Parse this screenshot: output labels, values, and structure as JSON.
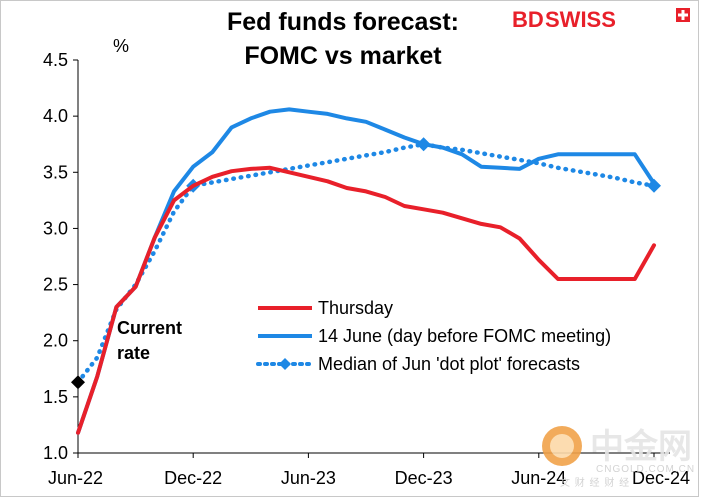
{
  "branding": {
    "logo_bd": "BD",
    "logo_swiss": "SWISS",
    "watermark_cn": "中金网",
    "watermark_site": "CNGOLD.COM.CN",
    "watermark_sub": "文  财  经  财  经"
  },
  "chart_data": {
    "type": "line",
    "title": [
      "Fed funds forecast:",
      "FOMC vs market"
    ],
    "ylabel": "%",
    "ylim": [
      1.0,
      4.5
    ],
    "yticks": [
      "1.0",
      "1.5",
      "2.0",
      "2.5",
      "3.0",
      "3.5",
      "4.0",
      "4.5"
    ],
    "xlim": [
      0,
      30
    ],
    "xticks": [
      {
        "pos": 0,
        "label": "Jun-22"
      },
      {
        "pos": 6,
        "label": "Dec-22"
      },
      {
        "pos": 12,
        "label": "Jun-23"
      },
      {
        "pos": 18,
        "label": "Dec-23"
      },
      {
        "pos": 24,
        "label": "Jun-24"
      },
      {
        "pos": 30,
        "label": "Dec-24"
      }
    ],
    "series": [
      {
        "name": "Thursday",
        "style": "solid",
        "color": "#e8202a",
        "x": [
          0,
          1,
          2,
          3,
          4,
          5,
          6,
          7,
          8,
          9,
          10,
          11,
          12,
          13,
          14,
          15,
          16,
          17,
          18,
          19,
          20,
          21,
          22,
          23,
          24,
          25,
          26,
          27,
          28,
          29,
          30
        ],
        "y": [
          1.18,
          1.68,
          2.3,
          2.48,
          2.92,
          3.25,
          3.38,
          3.46,
          3.51,
          3.53,
          3.54,
          3.5,
          3.46,
          3.42,
          3.36,
          3.33,
          3.28,
          3.2,
          3.17,
          3.14,
          3.09,
          3.04,
          3.01,
          2.91,
          2.72,
          2.55,
          2.55,
          2.55,
          2.55,
          2.55,
          2.85
        ]
      },
      {
        "name": "14 June (day before FOMC meeting)",
        "style": "solid",
        "color": "#1e88e5",
        "x": [
          0,
          1,
          2,
          3,
          4,
          5,
          6,
          7,
          8,
          9,
          10,
          11,
          12,
          13,
          14,
          15,
          16,
          17,
          18,
          19,
          20,
          21,
          22,
          23,
          24,
          25,
          26,
          27,
          28,
          29,
          30
        ],
        "y": [
          1.18,
          1.68,
          2.3,
          2.48,
          2.92,
          3.33,
          3.55,
          3.68,
          3.9,
          3.98,
          4.04,
          4.06,
          4.04,
          4.02,
          3.98,
          3.95,
          3.88,
          3.81,
          3.75,
          3.72,
          3.66,
          3.55,
          3.54,
          3.53,
          3.62,
          3.66,
          3.66,
          3.66,
          3.66,
          3.66,
          3.4
        ]
      },
      {
        "name": "Median of Jun 'dot plot' forecasts",
        "style": "dotted",
        "color": "#1e88e5",
        "markers": "diamond",
        "marker_x": [
          6,
          18,
          30
        ],
        "x": [
          0,
          1,
          2,
          3,
          4,
          5,
          6,
          7,
          8,
          9,
          10,
          11,
          12,
          13,
          14,
          15,
          16,
          17,
          18,
          19,
          20,
          21,
          22,
          23,
          24,
          25,
          26,
          27,
          28,
          29,
          30
        ],
        "y": [
          1.63,
          1.85,
          2.28,
          2.5,
          2.8,
          3.15,
          3.38,
          3.41,
          3.44,
          3.47,
          3.5,
          3.53,
          3.56,
          3.59,
          3.62,
          3.65,
          3.68,
          3.72,
          3.75,
          3.72,
          3.7,
          3.67,
          3.64,
          3.61,
          3.58,
          3.54,
          3.51,
          3.48,
          3.45,
          3.41,
          3.38
        ]
      }
    ],
    "current_rate": {
      "x": 0,
      "y": 1.63,
      "label": [
        "Current",
        "rate"
      ],
      "color": "#000000"
    },
    "legend_position": "center-right"
  }
}
